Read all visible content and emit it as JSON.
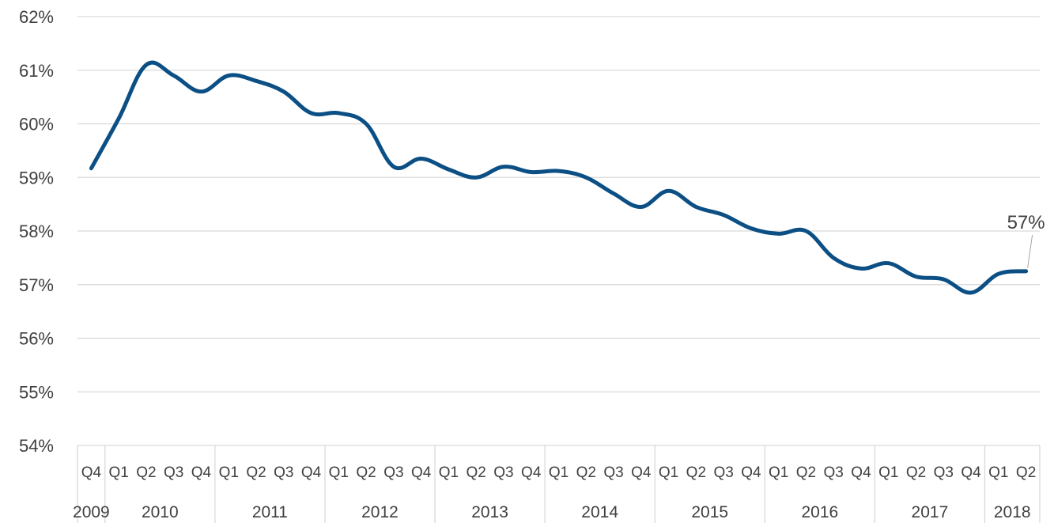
{
  "chart_data": {
    "type": "line",
    "title": "",
    "xlabel": "",
    "ylabel": "",
    "ylim": [
      54,
      62
    ],
    "y_ticks": [
      "54%",
      "55%",
      "56%",
      "57%",
      "58%",
      "59%",
      "60%",
      "61%",
      "62%"
    ],
    "grid": true,
    "legend": "none",
    "categories": [
      "2009 Q4",
      "2010 Q1",
      "2010 Q2",
      "2010 Q3",
      "2010 Q4",
      "2011 Q1",
      "2011 Q2",
      "2011 Q3",
      "2011 Q4",
      "2012 Q1",
      "2012 Q2",
      "2012 Q3",
      "2012 Q4",
      "2013 Q1",
      "2013 Q2",
      "2013 Q3",
      "2013 Q4",
      "2014 Q1",
      "2014 Q2",
      "2014 Q3",
      "2014 Q4",
      "2015 Q1",
      "2015 Q2",
      "2015 Q3",
      "2015 Q4",
      "2016 Q1",
      "2016 Q2",
      "2016 Q3",
      "2016 Q4",
      "2017 Q1",
      "2017 Q2",
      "2017 Q3",
      "2017 Q4",
      "2018 Q1",
      "2018 Q2"
    ],
    "quarter_labels": [
      "Q4",
      "Q1",
      "Q2",
      "Q3",
      "Q4",
      "Q1",
      "Q2",
      "Q3",
      "Q4",
      "Q1",
      "Q2",
      "Q3",
      "Q4",
      "Q1",
      "Q2",
      "Q3",
      "Q4",
      "Q1",
      "Q2",
      "Q3",
      "Q4",
      "Q1",
      "Q2",
      "Q3",
      "Q4",
      "Q1",
      "Q2",
      "Q3",
      "Q4",
      "Q1",
      "Q2",
      "Q3",
      "Q4",
      "Q1",
      "Q2"
    ],
    "year_groups": [
      {
        "label": "2009",
        "count": 1
      },
      {
        "label": "2010",
        "count": 4
      },
      {
        "label": "2011",
        "count": 4
      },
      {
        "label": "2012",
        "count": 4
      },
      {
        "label": "2013",
        "count": 4
      },
      {
        "label": "2014",
        "count": 4
      },
      {
        "label": "2015",
        "count": 4
      },
      {
        "label": "2016",
        "count": 4
      },
      {
        "label": "2017",
        "count": 4
      },
      {
        "label": "2018",
        "count": 2
      }
    ],
    "series": [
      {
        "color": "#0b4f85",
        "values": [
          59.17,
          60.1,
          61.1,
          60.9,
          60.6,
          60.9,
          60.8,
          60.6,
          60.2,
          60.2,
          60.0,
          59.2,
          59.35,
          59.15,
          59.0,
          59.2,
          59.1,
          59.12,
          59.0,
          58.7,
          58.45,
          58.75,
          58.45,
          58.3,
          58.05,
          57.95,
          58.0,
          57.5,
          57.3,
          57.4,
          57.15,
          57.1,
          56.85,
          57.2,
          57.25
        ]
      }
    ],
    "data_label": {
      "index": 34,
      "text": "57%"
    }
  }
}
